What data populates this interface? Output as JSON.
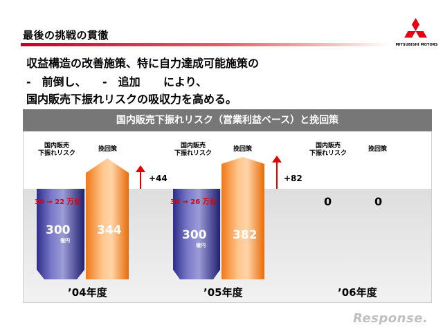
{
  "header": {
    "title": "最後の挑戦の貫徹",
    "brand": "MITSUBISHI MOTORS"
  },
  "body_text": {
    "line1": "収益構造の改善施策、特に自力達成可能施策の",
    "line2_a": "-　前倒し、",
    "line2_b": "-　追加",
    "line2_c": "により、",
    "line3": "国内販売下振れリスクの吸収力を高める。"
  },
  "panel": {
    "title": "国内販売下振れリスク（営業利益ベース）と挽回策",
    "risk_label_1": "国内販売",
    "risk_label_2": "下振れリスク",
    "recovery_label": "挽回策",
    "unit": "億円"
  },
  "groups": [
    {
      "year": "’04年度",
      "risk_note": "30 → 22 万台",
      "risk": "300",
      "recovery": "344",
      "diff": "+44"
    },
    {
      "year": "’05年度",
      "risk_note": "34 → 26 万台",
      "risk": "300",
      "recovery": "382",
      "diff": "+82"
    },
    {
      "year": "’06年度",
      "risk": "0",
      "recovery": "0"
    }
  ],
  "watermark": "Response."
}
